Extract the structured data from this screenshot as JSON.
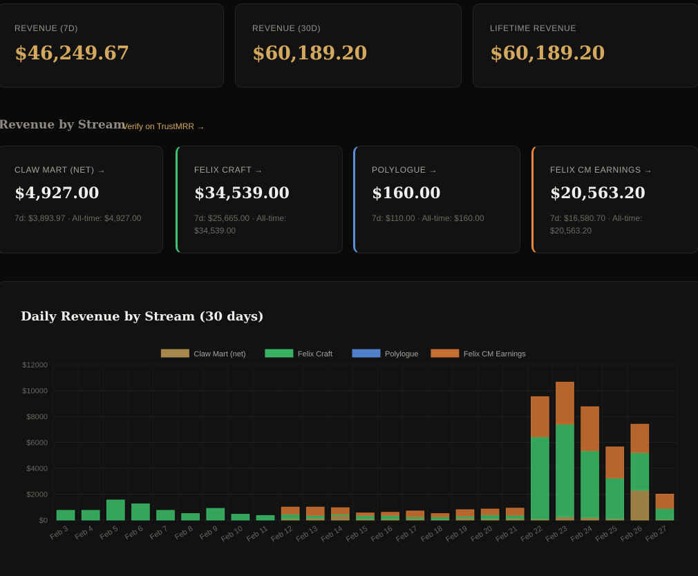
{
  "kpis": [
    {
      "label": "REVENUE (7D)",
      "value": "$46,249.67"
    },
    {
      "label": "REVENUE (30D)",
      "value": "$60,189.20"
    },
    {
      "label": "LIFETIME REVENUE",
      "value": "$60,189.20"
    }
  ],
  "streams_section": {
    "title": "Revenue by Stream",
    "verify_link": "Verify on TrustMRR →"
  },
  "streams": [
    {
      "label": "CLAW MART (NET) →",
      "value": "$4,927.00",
      "sub": "7d: $3,893.97 · All-time: $4,927.00",
      "color": "#c8a45c"
    },
    {
      "label": "FELIX CRAFT →",
      "value": "$34,539.00",
      "sub": "7d: $25,665.00 · All-time: $34,539.00",
      "color": "#3ec46d"
    },
    {
      "label": "POLYLOGUE →",
      "value": "$160.00",
      "sub": "7d: $110.00 · All-time: $160.00",
      "color": "#5b8fd9"
    },
    {
      "label": "FELIX CM EARNINGS →",
      "value": "$20,563.20",
      "sub": "7d: $16,580.70 · All-time: $20,563.20",
      "color": "#e8843c"
    }
  ],
  "chart_title": "Daily Revenue by Stream (30 days)",
  "chart_data": {
    "type": "bar",
    "stacked": true,
    "title": "Daily Revenue by Stream (30 days)",
    "legend_position": "top",
    "grid": true,
    "ylim": [
      0,
      12000
    ],
    "yticks": [
      "$0",
      "$2000",
      "$4000",
      "$6000",
      "$8000",
      "$10000",
      "$12000"
    ],
    "ytick_values": [
      0,
      2000,
      4000,
      6000,
      8000,
      10000,
      12000
    ],
    "categories": [
      "Feb 3",
      "Feb 4",
      "Feb 5",
      "Feb 6",
      "Feb 7",
      "Feb 8",
      "Feb 9",
      "Feb 10",
      "Feb 11",
      "Feb 12",
      "Feb 13",
      "Feb 14",
      "Feb 15",
      "Feb 16",
      "Feb 17",
      "Feb 18",
      "Feb 19",
      "Feb 20",
      "Feb 21",
      "Feb 22",
      "Feb 23",
      "Feb 24",
      "Feb 25",
      "Feb 26",
      "Feb 27"
    ],
    "series": [
      {
        "name": "Claw Mart (net)",
        "color": "#a8894b",
        "values": [
          0,
          0,
          0,
          0,
          0,
          0,
          0,
          0,
          0,
          100,
          150,
          350,
          100,
          100,
          100,
          50,
          150,
          100,
          120,
          80,
          250,
          200,
          100,
          2300,
          50
        ]
      },
      {
        "name": "Felix Craft",
        "color": "#38b262",
        "values": [
          750,
          750,
          1550,
          1250,
          750,
          500,
          900,
          450,
          350,
          350,
          200,
          100,
          250,
          250,
          150,
          200,
          150,
          300,
          250,
          6350,
          7150,
          5150,
          3150,
          2900,
          850
        ]
      },
      {
        "name": "Polylogue",
        "color": "#4f80c8",
        "values": [
          0,
          0,
          0,
          0,
          0,
          0,
          0,
          0,
          0,
          0,
          0,
          0,
          0,
          0,
          0,
          0,
          0,
          0,
          0,
          0,
          0,
          0,
          0,
          0,
          0
        ]
      },
      {
        "name": "Felix CM Earnings",
        "color": "#c46e30",
        "values": [
          0,
          0,
          0,
          0,
          0,
          0,
          0,
          0,
          0,
          550,
          650,
          500,
          200,
          250,
          450,
          250,
          500,
          450,
          550,
          3100,
          3250,
          3400,
          2400,
          2200,
          1100
        ]
      }
    ]
  }
}
